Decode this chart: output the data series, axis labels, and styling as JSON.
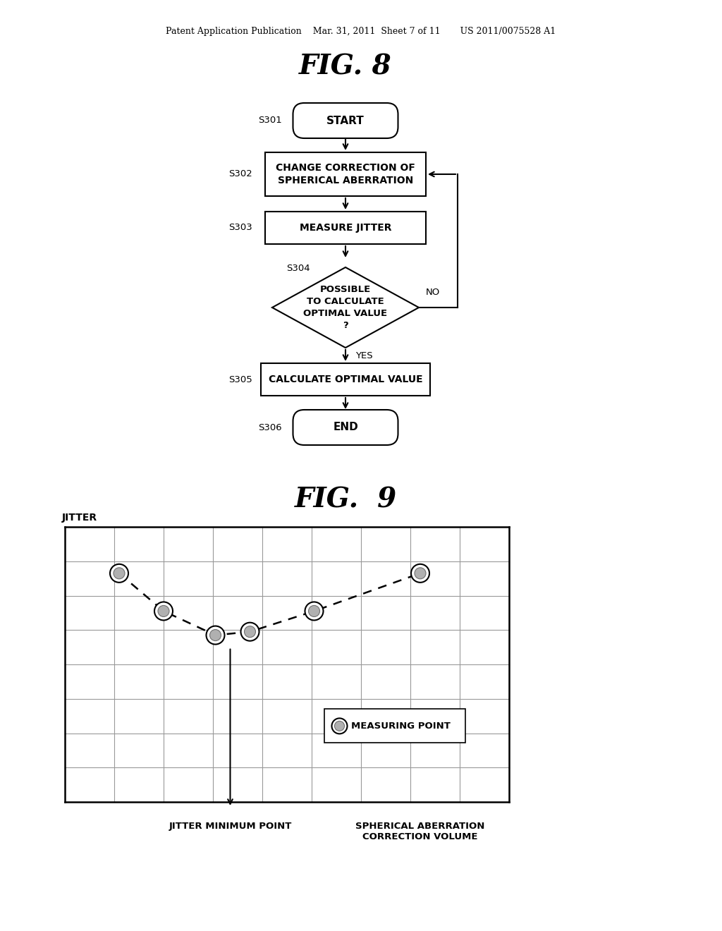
{
  "bg_color": "#ffffff",
  "header_text": "Patent Application Publication    Mar. 31, 2011  Sheet 7 of 11       US 2011/0075528 A1",
  "fig8_title": "FIG. 8",
  "fig9_title": "FIG.  9",
  "flowchart": {
    "start_label": "S301",
    "start_text": "START",
    "step2_label": "S302",
    "step2_text": "CHANGE CORRECTION OF\nSPHERICAL ABERRATION",
    "step3_label": "S303",
    "step3_text": "MEASURE JITTER",
    "diamond_label": "S304",
    "diamond_text": "POSSIBLE\nTO CALCULATE\nOPTIMAL VALUE\n?",
    "yes_label": "YES",
    "no_label": "NO",
    "step5_label": "S305",
    "step5_text": "CALCULATE OPTIMAL VALUE",
    "end_label": "S306",
    "end_text": "END"
  },
  "graph": {
    "ylabel": "JITTER",
    "xlabel1": "JITTER MINIMUM POINT",
    "xlabel2": "SPHERICAL ABERRATION\nCORRECTION VOLUME",
    "legend_text": "MEASURING POINT",
    "grid_cols": 9,
    "grid_rows": 8
  }
}
